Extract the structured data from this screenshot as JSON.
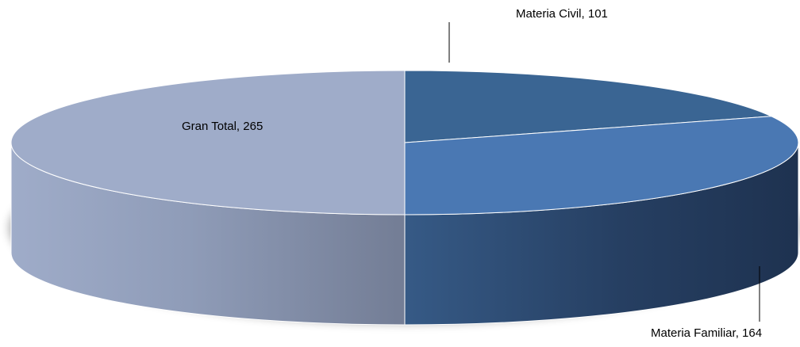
{
  "chart_data": {
    "type": "pie",
    "style": "3d",
    "title": "",
    "legend": "none",
    "slices": [
      {
        "label": "Materia Civil",
        "value": 101,
        "data_label": "Materia Civil, 101",
        "color": "#3A6593"
      },
      {
        "label": "Materia Familiar",
        "value": 164,
        "data_label": "Materia Familiar, 164",
        "color": "#4A78B3"
      },
      {
        "label": "Gran Total",
        "value": 265,
        "data_label": "Gran Total, 265",
        "color": "#9FACC9"
      }
    ]
  }
}
